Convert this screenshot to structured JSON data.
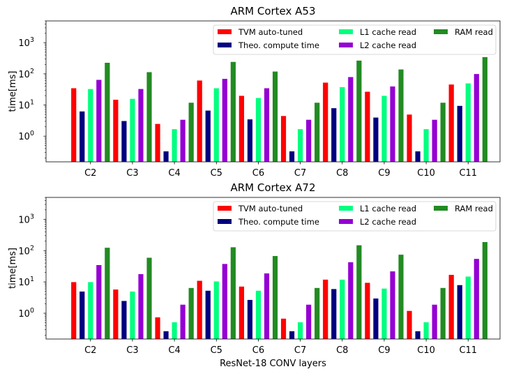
{
  "chart_data": [
    {
      "type": "bar",
      "title": "ARM Cortex A53",
      "ylabel": "time[ms]",
      "xlabel": "",
      "yscale": "log",
      "ylim": [
        0.15,
        5000
      ],
      "ytick_values": [
        1,
        10,
        100,
        1000
      ],
      "ytick_labels": [
        {
          "base": "10",
          "exp": "0"
        },
        {
          "base": "10",
          "exp": "1"
        },
        {
          "base": "10",
          "exp": "2"
        },
        {
          "base": "10",
          "exp": "3"
        }
      ],
      "categories": [
        "C2",
        "C3",
        "C4",
        "C5",
        "C6",
        "C7",
        "C8",
        "C9",
        "C10",
        "C11"
      ],
      "legend_position": "top-right",
      "series": [
        {
          "name": "TVM auto-tuned",
          "color": "#ff0000",
          "values": [
            35,
            15,
            2.5,
            62,
            20,
            4.5,
            53,
            27,
            5,
            46
          ]
        },
        {
          "name": "Theo. compute time",
          "color": "#000080",
          "values": [
            6.3,
            3.1,
            0.33,
            6.7,
            3.5,
            0.33,
            8,
            4,
            0.33,
            9.5
          ]
        },
        {
          "name": "L1 cache read",
          "color": "#00ff7f",
          "values": [
            33,
            16,
            1.7,
            35,
            17,
            1.7,
            38,
            20,
            1.7,
            50
          ]
        },
        {
          "name": "L2 cache read",
          "color": "#9400d3",
          "values": [
            65,
            33,
            3.4,
            70,
            35,
            3.4,
            80,
            40,
            3.4,
            100
          ]
        },
        {
          "name": "RAM read",
          "color": "#228b22",
          "values": [
            230,
            115,
            12,
            245,
            120,
            12,
            270,
            140,
            12,
            350
          ]
        }
      ]
    },
    {
      "type": "bar",
      "title": "ARM Cortex A72",
      "ylabel": "time[ms]",
      "xlabel": "ResNet-18 CONV layers",
      "yscale": "log",
      "ylim": [
        0.15,
        5000
      ],
      "ytick_values": [
        1,
        10,
        100,
        1000
      ],
      "ytick_labels": [
        {
          "base": "10",
          "exp": "0"
        },
        {
          "base": "10",
          "exp": "1"
        },
        {
          "base": "10",
          "exp": "2"
        },
        {
          "base": "10",
          "exp": "3"
        }
      ],
      "categories": [
        "C2",
        "C3",
        "C4",
        "C5",
        "C6",
        "C7",
        "C8",
        "C9",
        "C10",
        "C11"
      ],
      "legend_position": "top-right",
      "series": [
        {
          "name": "TVM auto-tuned",
          "color": "#ff0000",
          "values": [
            10,
            5.8,
            0.75,
            11,
            7.2,
            0.68,
            12,
            9.5,
            1.2,
            17
          ]
        },
        {
          "name": "Theo. compute time",
          "color": "#000080",
          "values": [
            5,
            2.5,
            0.27,
            5.3,
            2.7,
            0.27,
            6,
            3,
            0.27,
            8
          ]
        },
        {
          "name": "L1 cache read",
          "color": "#00ff7f",
          "values": [
            10,
            5,
            0.52,
            10.5,
            5.3,
            0.52,
            12,
            6.2,
            0.52,
            15
          ]
        },
        {
          "name": "L2 cache read",
          "color": "#9400d3",
          "values": [
            35,
            18,
            1.9,
            38,
            19,
            1.9,
            43,
            22,
            1.9,
            55
          ]
        },
        {
          "name": "RAM read",
          "color": "#228b22",
          "values": [
            125,
            60,
            6.5,
            130,
            68,
            6.5,
            150,
            75,
            6.5,
            190
          ]
        }
      ]
    }
  ]
}
